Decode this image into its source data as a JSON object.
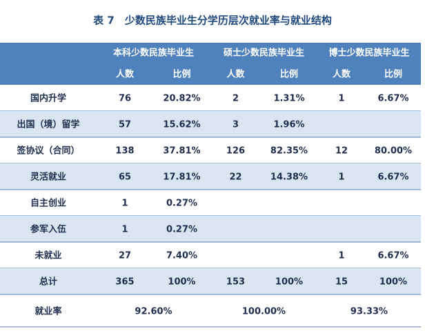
{
  "title": "表 7　少数民族毕业生分学历层次就业率与就业结构",
  "table": {
    "groups": [
      "本科少数民族毕业生",
      "硕士少数民族毕业生",
      "博士少数民族毕业生"
    ],
    "subheaders": [
      "人数",
      "比例",
      "人数",
      "比例",
      "人数",
      "比例"
    ],
    "rows": [
      [
        "国内升学",
        "76",
        "20.82%",
        "2",
        "1.31%",
        "1",
        "6.67%"
      ],
      [
        "出国（境）留学",
        "57",
        "15.62%",
        "3",
        "1.96%",
        null,
        null
      ],
      [
        "签协议（合同）",
        "138",
        "37.81%",
        "126",
        "82.35%",
        "12",
        "80.00%"
      ],
      [
        "灵活就业",
        "65",
        "17.81%",
        "22",
        "14.38%",
        "1",
        "6.67%"
      ],
      [
        "自主创业",
        "1",
        "0.27%",
        null,
        null,
        null,
        null
      ],
      [
        "参军入伍",
        "1",
        "0.27%",
        null,
        null,
        null,
        null
      ],
      [
        "未就业",
        "27",
        "7.40%",
        null,
        null,
        "1",
        "6.67%"
      ],
      [
        "总计",
        "365",
        "100%",
        "153",
        "100%",
        "15",
        "100%"
      ]
    ],
    "rate": {
      "label": "就业率",
      "values": [
        "92.60%",
        "100.00%",
        "93.33%"
      ]
    }
  }
}
